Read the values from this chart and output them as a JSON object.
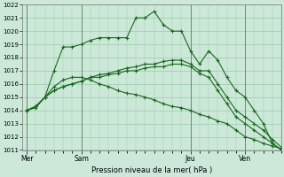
{
  "background_color": "#cce8d8",
  "grid_color": "#99ccaa",
  "line_color": "#1a6620",
  "title": "Pression niveau de la mer( hPa )",
  "ylim": [
    1011,
    1022
  ],
  "yticks": [
    1011,
    1012,
    1013,
    1014,
    1015,
    1016,
    1017,
    1018,
    1019,
    1020,
    1021,
    1022
  ],
  "day_labels": [
    "Mer",
    "Sam",
    "Jeu",
    "Ven"
  ],
  "day_positions": [
    0,
    6,
    18,
    24
  ],
  "xlim": [
    0,
    28
  ],
  "series": [
    [
      1014.0,
      1014.2,
      1015.0,
      1017.0,
      1018.8,
      1018.8,
      1019.0,
      1019.3,
      1019.5,
      1019.5,
      1019.5,
      1019.5,
      1021.0,
      1021.0,
      1021.5,
      1020.5,
      1020.0,
      1020.0,
      1018.5,
      1017.5,
      1018.5,
      1017.8,
      1016.5,
      1015.5,
      1015.0,
      1014.0,
      1013.0,
      1011.5,
      1011.0
    ],
    [
      1014.0,
      1014.3,
      1015.0,
      1015.5,
      1015.8,
      1016.0,
      1016.2,
      1016.5,
      1016.7,
      1016.8,
      1017.0,
      1017.2,
      1017.3,
      1017.5,
      1017.5,
      1017.7,
      1017.8,
      1017.8,
      1017.5,
      1017.0,
      1017.0,
      1016.0,
      1015.0,
      1014.0,
      1013.5,
      1013.0,
      1012.5,
      1011.8,
      1011.2
    ],
    [
      1014.0,
      1014.3,
      1015.0,
      1015.5,
      1015.8,
      1016.0,
      1016.2,
      1016.5,
      1016.5,
      1016.7,
      1016.8,
      1017.0,
      1017.0,
      1017.2,
      1017.3,
      1017.3,
      1017.5,
      1017.5,
      1017.3,
      1016.8,
      1016.5,
      1015.5,
      1014.5,
      1013.5,
      1013.0,
      1012.5,
      1012.0,
      1011.5,
      1011.0
    ],
    [
      1014.0,
      1014.3,
      1015.0,
      1015.8,
      1016.3,
      1016.5,
      1016.5,
      1016.3,
      1016.0,
      1015.8,
      1015.5,
      1015.3,
      1015.2,
      1015.0,
      1014.8,
      1014.5,
      1014.3,
      1014.2,
      1014.0,
      1013.7,
      1013.5,
      1013.2,
      1013.0,
      1012.5,
      1012.0,
      1011.8,
      1011.5,
      1011.3,
      1011.1
    ]
  ]
}
